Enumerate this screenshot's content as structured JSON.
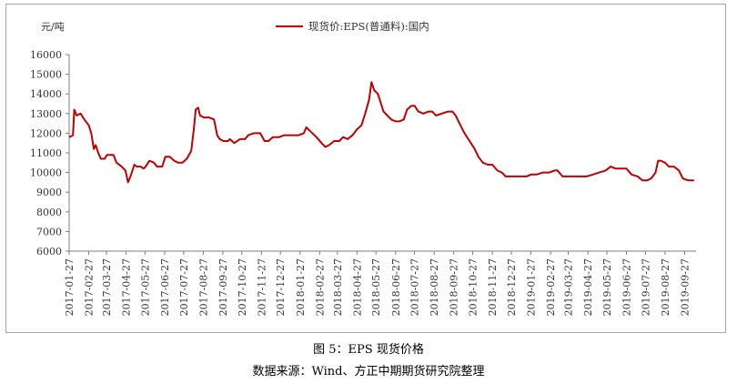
{
  "caption": "图 5：EPS 现货价格",
  "source": "数据来源：Wind、方正中期期货研究院整理",
  "chart_data": {
    "type": "line",
    "ylabel": "元/吨",
    "ylim": [
      6000,
      16000
    ],
    "yticks": [
      6000,
      7000,
      8000,
      9000,
      10000,
      11000,
      12000,
      13000,
      14000,
      15000,
      16000
    ],
    "xticks": [
      "2017-01-27",
      "2017-02-27",
      "2017-03-27",
      "2017-04-27",
      "2017-05-27",
      "2017-06-27",
      "2017-07-27",
      "2017-08-27",
      "2017-09-27",
      "2017-10-27",
      "2017-11-27",
      "2017-12-27",
      "2018-01-27",
      "2018-02-27",
      "2018-03-27",
      "2018-04-27",
      "2018-05-27",
      "2018-06-27",
      "2018-07-27",
      "2018-08-27",
      "2018-09-27",
      "2018-10-27",
      "2018-11-27",
      "2018-12-27",
      "2019-01-27",
      "2019-02-27",
      "2019-03-27",
      "2019-04-27",
      "2019-05-27",
      "2019-06-27",
      "2019-07-27",
      "2019-08-27",
      "2019-09-27"
    ],
    "xrange": [
      "2017-01-27",
      "2019-10-15"
    ],
    "grid": false,
    "legend": "top-center",
    "series": [
      {
        "name": "现货价:EPS(普通料):国内",
        "color": "#c00000",
        "points": [
          [
            "2017-01-27",
            11800
          ],
          [
            "2017-02-02",
            11900
          ],
          [
            "2017-02-04",
            13200
          ],
          [
            "2017-02-08",
            12900
          ],
          [
            "2017-02-14",
            13000
          ],
          [
            "2017-02-20",
            12700
          ],
          [
            "2017-02-27",
            12400
          ],
          [
            "2017-03-03",
            12000
          ],
          [
            "2017-03-07",
            11200
          ],
          [
            "2017-03-10",
            11400
          ],
          [
            "2017-03-14",
            11000
          ],
          [
            "2017-03-18",
            10700
          ],
          [
            "2017-03-24",
            10700
          ],
          [
            "2017-03-28",
            10900
          ],
          [
            "2017-04-07",
            10900
          ],
          [
            "2017-04-12",
            10500
          ],
          [
            "2017-04-20",
            10300
          ],
          [
            "2017-04-26",
            10100
          ],
          [
            "2017-04-30",
            9500
          ],
          [
            "2017-05-04",
            9800
          ],
          [
            "2017-05-10",
            10400
          ],
          [
            "2017-05-14",
            10300
          ],
          [
            "2017-05-20",
            10300
          ],
          [
            "2017-05-25",
            10200
          ],
          [
            "2017-05-28",
            10300
          ],
          [
            "2017-06-03",
            10600
          ],
          [
            "2017-06-10",
            10500
          ],
          [
            "2017-06-15",
            10300
          ],
          [
            "2017-06-23",
            10300
          ],
          [
            "2017-06-28",
            10800
          ],
          [
            "2017-07-05",
            10800
          ],
          [
            "2017-07-12",
            10600
          ],
          [
            "2017-07-18",
            10500
          ],
          [
            "2017-07-25",
            10500
          ],
          [
            "2017-08-01",
            10700
          ],
          [
            "2017-08-08",
            11100
          ],
          [
            "2017-08-12",
            12200
          ],
          [
            "2017-08-15",
            13200
          ],
          [
            "2017-08-19",
            13300
          ],
          [
            "2017-08-22",
            12900
          ],
          [
            "2017-08-28",
            12800
          ],
          [
            "2017-09-05",
            12800
          ],
          [
            "2017-09-13",
            12700
          ],
          [
            "2017-09-18",
            11900
          ],
          [
            "2017-09-22",
            11700
          ],
          [
            "2017-09-28",
            11600
          ],
          [
            "2017-10-05",
            11600
          ],
          [
            "2017-10-08",
            11700
          ],
          [
            "2017-10-15",
            11500
          ],
          [
            "2017-10-24",
            11700
          ],
          [
            "2017-11-01",
            11700
          ],
          [
            "2017-11-06",
            11900
          ],
          [
            "2017-11-15",
            12000
          ],
          [
            "2017-11-25",
            12000
          ],
          [
            "2017-12-02",
            11600
          ],
          [
            "2017-12-08",
            11600
          ],
          [
            "2017-12-15",
            11800
          ],
          [
            "2017-12-25",
            11800
          ],
          [
            "2018-01-02",
            11900
          ],
          [
            "2018-01-08",
            11900
          ],
          [
            "2018-01-15",
            11900
          ],
          [
            "2018-01-25",
            11900
          ],
          [
            "2018-02-02",
            12000
          ],
          [
            "2018-02-06",
            12300
          ],
          [
            "2018-02-12",
            12100
          ],
          [
            "2018-02-22",
            11800
          ],
          [
            "2018-03-02",
            11500
          ],
          [
            "2018-03-08",
            11300
          ],
          [
            "2018-03-14",
            11400
          ],
          [
            "2018-03-22",
            11600
          ],
          [
            "2018-03-30",
            11600
          ],
          [
            "2018-04-05",
            11800
          ],
          [
            "2018-04-12",
            11700
          ],
          [
            "2018-04-20",
            11900
          ],
          [
            "2018-04-27",
            12200
          ],
          [
            "2018-05-04",
            12400
          ],
          [
            "2018-05-10",
            13000
          ],
          [
            "2018-05-16",
            13700
          ],
          [
            "2018-05-20",
            14600
          ],
          [
            "2018-05-24",
            14200
          ],
          [
            "2018-05-30",
            14000
          ],
          [
            "2018-06-04",
            13500
          ],
          [
            "2018-06-08",
            13100
          ],
          [
            "2018-06-14",
            12900
          ],
          [
            "2018-06-20",
            12700
          ],
          [
            "2018-06-27",
            12600
          ],
          [
            "2018-07-03",
            12600
          ],
          [
            "2018-07-10",
            12700
          ],
          [
            "2018-07-15",
            13200
          ],
          [
            "2018-07-22",
            13400
          ],
          [
            "2018-07-27",
            13400
          ],
          [
            "2018-08-02",
            13100
          ],
          [
            "2018-08-10",
            13000
          ],
          [
            "2018-08-18",
            13100
          ],
          [
            "2018-08-24",
            13100
          ],
          [
            "2018-08-30",
            12900
          ],
          [
            "2018-09-08",
            13000
          ],
          [
            "2018-09-18",
            13100
          ],
          [
            "2018-09-25",
            13100
          ],
          [
            "2018-09-30",
            12900
          ],
          [
            "2018-10-06",
            12500
          ],
          [
            "2018-10-14",
            12000
          ],
          [
            "2018-10-22",
            11600
          ],
          [
            "2018-10-30",
            11200
          ],
          [
            "2018-11-05",
            10800
          ],
          [
            "2018-11-12",
            10500
          ],
          [
            "2018-11-20",
            10400
          ],
          [
            "2018-11-27",
            10400
          ],
          [
            "2018-12-05",
            10100
          ],
          [
            "2018-12-12",
            10000
          ],
          [
            "2018-12-18",
            9800
          ],
          [
            "2018-12-25",
            9800
          ],
          [
            "2019-01-02",
            9800
          ],
          [
            "2019-01-10",
            9800
          ],
          [
            "2019-01-20",
            9800
          ],
          [
            "2019-01-27",
            9900
          ],
          [
            "2019-02-05",
            9900
          ],
          [
            "2019-02-15",
            10000
          ],
          [
            "2019-02-25",
            10000
          ],
          [
            "2019-03-05",
            10100
          ],
          [
            "2019-03-10",
            10100
          ],
          [
            "2019-03-18",
            9800
          ],
          [
            "2019-03-27",
            9800
          ],
          [
            "2019-04-05",
            9800
          ],
          [
            "2019-04-15",
            9800
          ],
          [
            "2019-04-25",
            9800
          ],
          [
            "2019-05-05",
            9900
          ],
          [
            "2019-05-15",
            10000
          ],
          [
            "2019-05-25",
            10100
          ],
          [
            "2019-06-02",
            10300
          ],
          [
            "2019-06-10",
            10200
          ],
          [
            "2019-06-18",
            10200
          ],
          [
            "2019-06-27",
            10200
          ],
          [
            "2019-07-05",
            9900
          ],
          [
            "2019-07-15",
            9800
          ],
          [
            "2019-07-22",
            9600
          ],
          [
            "2019-07-30",
            9600
          ],
          [
            "2019-08-05",
            9700
          ],
          [
            "2019-08-12",
            10000
          ],
          [
            "2019-08-16",
            10600
          ],
          [
            "2019-08-20",
            10600
          ],
          [
            "2019-08-27",
            10500
          ],
          [
            "2019-09-02",
            10300
          ],
          [
            "2019-09-10",
            10300
          ],
          [
            "2019-09-18",
            10100
          ],
          [
            "2019-09-24",
            9700
          ],
          [
            "2019-10-02",
            9600
          ],
          [
            "2019-10-12",
            9600
          ]
        ]
      }
    ]
  }
}
